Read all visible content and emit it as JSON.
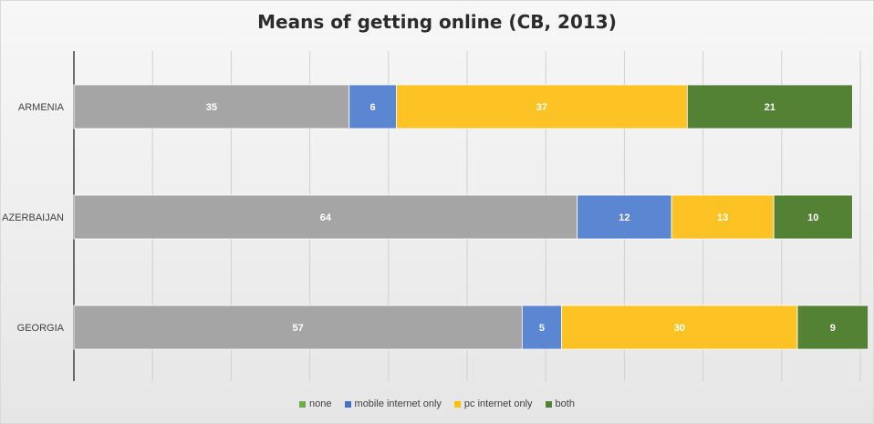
{
  "chart_data": {
    "type": "bar",
    "orientation": "horizontal",
    "stacked": true,
    "title": "Means of getting online (CB, 2013)",
    "categories": [
      "ARMENIA",
      "AZERBAIJAN",
      "GEORGIA"
    ],
    "series": [
      {
        "name": "none",
        "color": "#a5a5a5",
        "values": [
          35,
          64,
          57
        ]
      },
      {
        "name": "mobile internet only",
        "color": "#5b87d2",
        "values": [
          6,
          12,
          5
        ]
      },
      {
        "name": "pc internet only",
        "color": "#fdc325",
        "values": [
          37,
          13,
          30
        ]
      },
      {
        "name": "both",
        "color": "#548235",
        "values": [
          21,
          10,
          9
        ]
      }
    ],
    "legend_marker_colors": [
      "#70ad47",
      "#4472c4",
      "#ffc000",
      "#548235"
    ],
    "xlim": [
      0,
      100
    ],
    "gridlines": true,
    "legend_position": "bottom",
    "data_label_color": "#ffffff"
  }
}
